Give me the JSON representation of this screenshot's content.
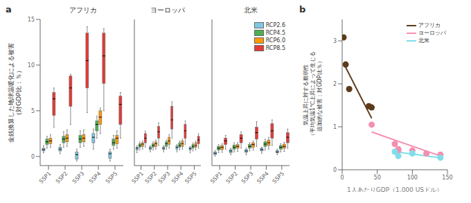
{
  "chart_data": [
    {
      "type": "box",
      "title": "アフリカ",
      "annotations": [
        "a"
      ],
      "ylabel": "金銭換算した地球温暖化による被害\n（対GDP比：％）",
      "categories": [
        "SSP1",
        "SSP2",
        "SSP3",
        "SSP4",
        "SSP5"
      ],
      "series": [
        {
          "name": "RCP2.6",
          "color": "#7ec8e3",
          "values": [
            {
              "whislo": 0.4,
              "q1": 0.6,
              "median": 0.75,
              "q3": 0.9,
              "whishi": 1.2
            },
            {
              "whislo": 0.3,
              "q1": 0.6,
              "median": 0.8,
              "q3": 1.0,
              "whishi": 1.3
            },
            {
              "whislo": -0.5,
              "q1": -0.3,
              "median": 0.2,
              "q3": 0.5,
              "whishi": 0.8
            },
            {
              "whislo": 0.8,
              "q1": 1.5,
              "median": 2.1,
              "q3": 2.5,
              "whishi": 3.0
            },
            {
              "whislo": -0.5,
              "q1": -0.2,
              "median": 0.3,
              "q3": 0.5,
              "whishi": 0.8
            }
          ]
        },
        {
          "name": "RCP4.5",
          "color": "#4caf50",
          "values": [
            {
              "whislo": 0.9,
              "q1": 1.3,
              "median": 1.6,
              "q3": 1.9,
              "whishi": 2.2
            },
            {
              "whislo": 1.0,
              "q1": 1.5,
              "median": 1.9,
              "q3": 2.2,
              "whishi": 2.7
            },
            {
              "whislo": 1.0,
              "q1": 1.5,
              "median": 1.9,
              "q3": 2.3,
              "whishi": 2.8
            },
            {
              "whislo": 2.0,
              "q1": 2.8,
              "median": 3.5,
              "q3": 3.9,
              "whishi": 4.4
            },
            {
              "whislo": 0.8,
              "q1": 1.2,
              "median": 1.5,
              "q3": 1.9,
              "whishi": 2.3
            }
          ]
        },
        {
          "name": "RCP6.0",
          "color": "#ff9800",
          "values": [
            {
              "whislo": 1.0,
              "q1": 1.4,
              "median": 1.7,
              "q3": 2.0,
              "whishi": 2.4
            },
            {
              "whislo": 1.1,
              "q1": 1.6,
              "median": 2.0,
              "q3": 2.4,
              "whishi": 2.9
            },
            {
              "whislo": 1.1,
              "q1": 1.6,
              "median": 2.0,
              "q3": 2.4,
              "whishi": 2.9
            },
            {
              "whislo": 2.5,
              "q1": 3.5,
              "median": 4.3,
              "q3": 5.0,
              "whishi": 5.3
            },
            {
              "whislo": 0.9,
              "q1": 1.4,
              "median": 2.0,
              "q3": 2.3,
              "whishi": 2.8
            }
          ]
        },
        {
          "name": "RCP8.5",
          "color": "#e53935",
          "values": [
            {
              "whislo": 3.2,
              "q1": 4.5,
              "median": 6.3,
              "q3": 7.0,
              "whishi": 7.5
            },
            {
              "whislo": 3.5,
              "q1": 5.5,
              "median": 7.5,
              "q3": 8.8,
              "whishi": 9.0
            },
            {
              "whislo": 4.8,
              "q1": 7.5,
              "median": 10.5,
              "q3": 13.5,
              "whishi": 14.2
            },
            {
              "whislo": 5.0,
              "q1": 8.0,
              "median": 11.0,
              "q3": 13.5,
              "whishi": 14.0
            },
            {
              "whislo": 2.0,
              "q1": 3.5,
              "median": 5.7,
              "q3": 6.6,
              "whishi": 7.0
            }
          ]
        }
      ],
      "ylim": [
        -1,
        15
      ],
      "yticks": [
        0,
        5,
        10,
        15
      ]
    },
    {
      "type": "box",
      "title": "ヨーロッパ",
      "tick_labels": "x",
      "categories": [
        "SSP1",
        "SSP2",
        "SSP3",
        "SSP4",
        "SSP5"
      ],
      "series": [
        {
          "name": "RCP2.6",
          "color": "#7ec8e3",
          "values": [
            {
              "whislo": 0.4,
              "q1": 0.7,
              "median": 0.9,
              "q3": 1.0,
              "whishi": 1.2
            },
            {
              "whislo": 0.5,
              "q1": 0.75,
              "median": 0.9,
              "q3": 1.05,
              "whishi": 1.2
            },
            {
              "whislo": 0.5,
              "q1": 0.75,
              "median": 0.9,
              "q3": 1.05,
              "whishi": 1.2
            },
            {
              "whislo": 0.5,
              "q1": 0.8,
              "median": 1.0,
              "q3": 1.15,
              "whishi": 1.3
            },
            {
              "whislo": 0.4,
              "q1": 0.7,
              "median": 0.85,
              "q3": 1.0,
              "whishi": 1.1
            }
          ]
        },
        {
          "name": "RCP4.5",
          "color": "#4caf50",
          "values": [
            {
              "whislo": 0.7,
              "q1": 1.0,
              "median": 1.2,
              "q3": 1.4,
              "whishi": 1.6
            },
            {
              "whislo": 0.7,
              "q1": 1.0,
              "median": 1.2,
              "q3": 1.4,
              "whishi": 1.6
            },
            {
              "whislo": 0.8,
              "q1": 1.1,
              "median": 1.4,
              "q3": 1.6,
              "whishi": 1.8
            },
            {
              "whislo": 0.7,
              "q1": 1.0,
              "median": 1.2,
              "q3": 1.5,
              "whishi": 1.7
            },
            {
              "whislo": 0.6,
              "q1": 0.9,
              "median": 1.1,
              "q3": 1.3,
              "whishi": 1.5
            }
          ]
        },
        {
          "name": "RCP6.0",
          "color": "#ff9800",
          "values": [
            {
              "whislo": 0.8,
              "q1": 1.1,
              "median": 1.35,
              "q3": 1.5,
              "whishi": 1.7
            },
            {
              "whislo": 0.8,
              "q1": 1.1,
              "median": 1.4,
              "q3": 1.6,
              "whishi": 1.8
            },
            {
              "whislo": 0.9,
              "q1": 1.3,
              "median": 1.7,
              "q3": 2.1,
              "whishi": 2.4
            },
            {
              "whislo": 0.8,
              "q1": 1.1,
              "median": 1.4,
              "q3": 1.7,
              "whishi": 1.9
            },
            {
              "whislo": 0.7,
              "q1": 1.0,
              "median": 1.2,
              "q3": 1.5,
              "whishi": 1.7
            }
          ]
        },
        {
          "name": "RCP8.5",
          "color": "#e53935",
          "values": [
            {
              "whislo": 1.0,
              "q1": 1.5,
              "median": 2.0,
              "q3": 2.5,
              "whishi": 2.8
            },
            {
              "whislo": 1.2,
              "q1": 2.0,
              "median": 2.7,
              "q3": 3.3,
              "whishi": 3.7
            },
            {
              "whislo": 2.0,
              "q1": 3.0,
              "median": 4.0,
              "q3": 5.5,
              "whishi": 6.0
            },
            {
              "whislo": 1.3,
              "q1": 2.0,
              "median": 2.8,
              "q3": 3.5,
              "whishi": 3.9
            },
            {
              "whislo": 0.9,
              "q1": 1.4,
              "median": 1.8,
              "q3": 2.2,
              "whishi": 2.5
            }
          ]
        }
      ],
      "ylim": [
        -1,
        15
      ],
      "yticks": [
        0,
        5,
        10,
        15
      ]
    },
    {
      "type": "box",
      "title": "北米",
      "tick_labels": "x",
      "legend": "upper right",
      "categories": [
        "SSP1",
        "SSP2",
        "SSP3",
        "SSP4",
        "SSP5"
      ],
      "series": [
        {
          "name": "RCP2.6",
          "color": "#7ec8e3",
          "values": [
            {
              "whislo": 0.05,
              "q1": 0.2,
              "median": 0.35,
              "q3": 0.5,
              "whishi": 0.65
            },
            {
              "whislo": 0.2,
              "q1": 0.4,
              "median": 0.6,
              "q3": 0.75,
              "whishi": 0.9
            },
            {
              "whislo": 0.2,
              "q1": 0.45,
              "median": 0.6,
              "q3": 0.75,
              "whishi": 0.9
            },
            {
              "whislo": 0.35,
              "q1": 0.6,
              "median": 0.75,
              "q3": 0.9,
              "whishi": 1.0
            },
            {
              "whislo": 0.2,
              "q1": 0.4,
              "median": 0.5,
              "q3": 0.65,
              "whishi": 0.8
            }
          ]
        },
        {
          "name": "RCP4.5",
          "color": "#4caf50",
          "values": [
            {
              "whislo": 0.4,
              "q1": 0.7,
              "median": 0.9,
              "q3": 1.1,
              "whishi": 1.3
            },
            {
              "whislo": 0.5,
              "q1": 0.8,
              "median": 1.0,
              "q3": 1.25,
              "whishi": 1.5
            },
            {
              "whislo": 0.6,
              "q1": 0.9,
              "median": 1.1,
              "q3": 1.3,
              "whishi": 1.5
            },
            {
              "whislo": 0.7,
              "q1": 1.1,
              "median": 1.35,
              "q3": 1.6,
              "whishi": 1.9
            },
            {
              "whislo": 0.5,
              "q1": 0.8,
              "median": 1.0,
              "q3": 1.2,
              "whishi": 1.4
            }
          ]
        },
        {
          "name": "RCP6.0",
          "color": "#ff9800",
          "values": [
            {
              "whislo": 0.45,
              "q1": 0.75,
              "median": 1.0,
              "q3": 1.2,
              "whishi": 1.4
            },
            {
              "whislo": 0.55,
              "q1": 0.9,
              "median": 1.1,
              "q3": 1.3,
              "whishi": 1.5
            },
            {
              "whislo": 0.7,
              "q1": 1.0,
              "median": 1.3,
              "q3": 1.5,
              "whishi": 1.7
            },
            {
              "whislo": 0.8,
              "q1": 1.2,
              "median": 1.5,
              "q3": 1.8,
              "whishi": 2.1
            },
            {
              "whislo": 0.55,
              "q1": 0.9,
              "median": 1.1,
              "q3": 1.35,
              "whishi": 1.55
            }
          ]
        },
        {
          "name": "RCP8.5",
          "color": "#e53935",
          "values": [
            {
              "whislo": 0.8,
              "q1": 1.3,
              "median": 1.7,
              "q3": 2.0,
              "whishi": 2.3
            },
            {
              "whislo": 0.9,
              "q1": 1.5,
              "median": 2.0,
              "q3": 2.4,
              "whishi": 2.7
            },
            {
              "whislo": 1.1,
              "q1": 1.9,
              "median": 2.6,
              "q3": 3.2,
              "whishi": 3.8
            },
            {
              "whislo": 1.2,
              "q1": 2.0,
              "median": 2.8,
              "q3": 3.6,
              "whishi": 4.0
            },
            {
              "whislo": 0.9,
              "q1": 1.5,
              "median": 2.1,
              "q3": 2.6,
              "whishi": 3.0
            }
          ]
        }
      ],
      "ylim": [
        -1,
        15
      ],
      "yticks": [
        0,
        5,
        10,
        15
      ]
    },
    {
      "type": "scatter",
      "annotations": [
        "b"
      ],
      "legend": "upper right",
      "xlabel": "1人あたりGDP（1,000 USドル）",
      "ylabel": "気温上昇に対する脆弱性\n（平均気温1℃上昇によって生じる\n追加的な被害：対GDP比％）",
      "series": [
        {
          "name": "アフリカ",
          "color": "#5d3a1a",
          "x": [
            2,
            5,
            10,
            38,
            42
          ],
          "values": [
            3.08,
            2.45,
            1.88,
            1.48,
            1.45
          ],
          "line": {
            "x": [
              2,
              42
            ],
            "values": [
              2.48,
              1.2
            ]
          }
        },
        {
          "name": "ヨーロッパ",
          "color": "#f48fb1",
          "x": [
            42,
            75,
            80,
            80,
            100,
            120,
            140
          ],
          "values": [
            1.05,
            0.6,
            0.48,
            0.45,
            0.45,
            0.38,
            0.35
          ],
          "line": {
            "x": [
              42,
              140
            ],
            "values": [
              0.88,
              0.32
            ]
          }
        },
        {
          "name": "北米",
          "color": "#80deea",
          "x": [
            75,
            80,
            100,
            140
          ],
          "values": [
            0.42,
            0.32,
            0.38,
            0.28
          ],
          "line": {
            "x": [
              75,
              140
            ],
            "values": [
              0.42,
              0.28
            ]
          }
        }
      ],
      "xlim": [
        0,
        150
      ],
      "xticks": [
        0,
        50,
        100,
        150
      ],
      "ylim": [
        0,
        3.5
      ],
      "yticks": [
        0,
        1,
        2,
        3
      ]
    }
  ]
}
